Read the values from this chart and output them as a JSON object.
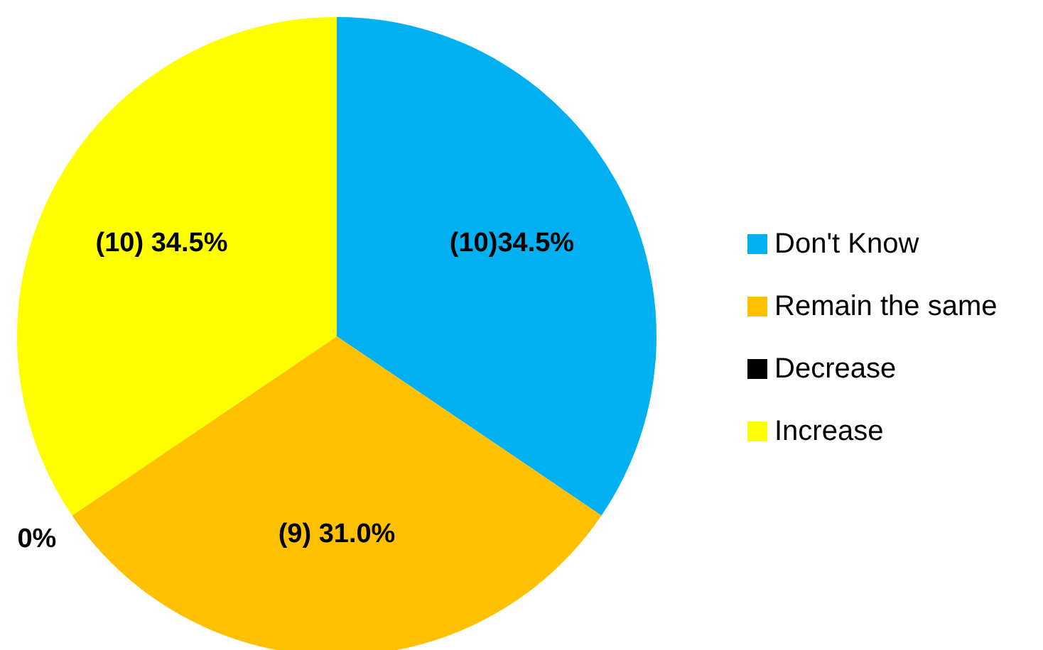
{
  "chart_data": {
    "type": "pie",
    "categories": [
      "Don't Know",
      "Remain the same",
      "Decrease",
      "Increase"
    ],
    "values": [
      10,
      9,
      0,
      10
    ],
    "colors": [
      "#00b0f0",
      "#ffc000",
      "#000000",
      "#ffff00"
    ],
    "value_labels": [
      "(10)34.5%",
      "(9) 31.0%",
      "0%",
      "(10) 34.5%"
    ],
    "legend": "right"
  }
}
